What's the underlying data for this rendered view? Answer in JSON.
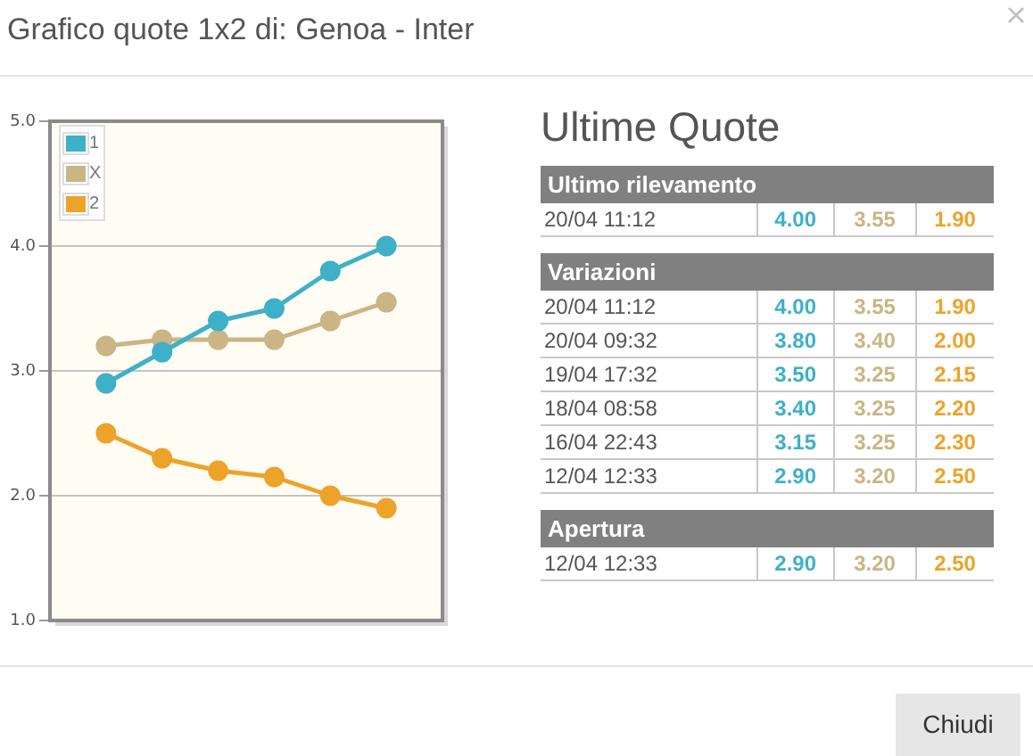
{
  "chart_data": [
    {
      "type": "line",
      "title": "Grafico quote 1x2 di: Genoa - Inter",
      "categories": [
        null,
        null,
        null,
        null,
        null,
        null
      ],
      "series": [
        {
          "name": "1",
          "color": "#3eb0c8",
          "values": [
            2.9,
            3.15,
            3.4,
            3.5,
            3.8,
            4.0
          ]
        },
        {
          "name": "X",
          "color": "#c9b585",
          "values": [
            3.2,
            3.25,
            3.25,
            3.25,
            3.4,
            3.55
          ]
        },
        {
          "name": "2",
          "color": "#eda32a",
          "values": [
            2.5,
            2.3,
            2.2,
            2.15,
            2.0,
            1.9
          ]
        }
      ],
      "ylim": [
        1,
        5
      ],
      "yticks": [
        {
          "value": 1,
          "label": "1.0"
        },
        {
          "value": 2,
          "label": "2.0"
        },
        {
          "value": 3,
          "label": "3.0"
        },
        {
          "value": 4,
          "label": "4.0"
        },
        {
          "value": 5,
          "label": "5.0"
        }
      ],
      "grid": "y",
      "legend": "top left",
      "marker": "circle"
    },
    {
      "type": "other",
      "title": "Ultime Quote",
      "annotations": [
        "Chiudi"
      ]
    },
    {
      "type": "other",
      "title": "Ultimo rilevamento",
      "categories": [
        "20/04 11:12"
      ],
      "series": [
        {
          "color": "#3eb0c8",
          "values": [
            4.0
          ],
          "value_labels": [
            "4.00"
          ]
        },
        {
          "color": "#c9b585",
          "values": [
            3.55
          ],
          "value_labels": [
            "3.55"
          ]
        },
        {
          "color": "#eda32a",
          "values": [
            1.9
          ],
          "value_labels": [
            "1.90"
          ]
        }
      ]
    },
    {
      "type": "other",
      "title": "Variazioni",
      "categories": [
        "20/04 11:12",
        "20/04 09:32",
        "19/04 17:32",
        "18/04 08:58",
        "16/04 22:43",
        "12/04 12:33"
      ],
      "series": [
        {
          "color": "#3eb0c8",
          "values": [
            4.0,
            3.8,
            3.5,
            3.4,
            3.15,
            2.9
          ],
          "value_labels": [
            "4.00",
            "3.80",
            "3.50",
            "3.40",
            "3.15",
            "2.90"
          ]
        },
        {
          "color": "#c9b585",
          "values": [
            3.55,
            3.4,
            3.25,
            3.25,
            3.25,
            3.2
          ],
          "value_labels": [
            "3.55",
            "3.40",
            "3.25",
            "3.25",
            "3.25",
            "3.20"
          ]
        },
        {
          "color": "#eda32a",
          "values": [
            1.9,
            2.0,
            2.15,
            2.2,
            2.3,
            2.5
          ],
          "value_labels": [
            "1.90",
            "2.00",
            "2.15",
            "2.20",
            "2.30",
            "2.50"
          ]
        }
      ]
    },
    {
      "type": "other",
      "title": "Apertura",
      "categories": [
        "12/04 12:33"
      ],
      "series": [
        {
          "color": "#3eb0c8",
          "values": [
            2.9
          ],
          "value_labels": [
            "2.90"
          ]
        },
        {
          "color": "#c9b585",
          "values": [
            3.2
          ],
          "value_labels": [
            "3.20"
          ]
        },
        {
          "color": "#eda32a",
          "values": [
            2.5
          ],
          "value_labels": [
            "2.50"
          ]
        }
      ]
    }
  ]
}
